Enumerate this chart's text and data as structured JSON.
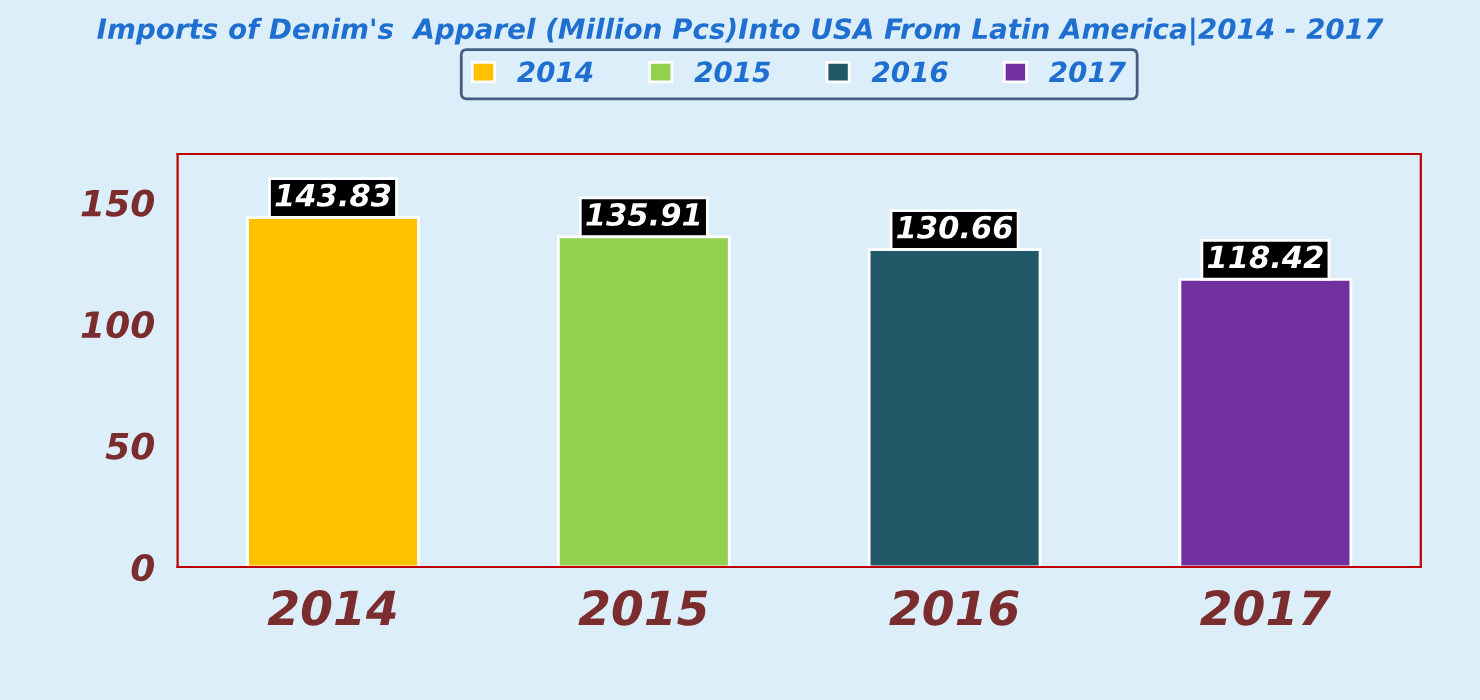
{
  "chart_data": {
    "type": "bar",
    "title": "Imports of Denim's  Apparel (Million Pcs)Into USA From Latin America|2014 - 2017",
    "categories": [
      "2014",
      "2015",
      "2016",
      "2017"
    ],
    "series": [
      {
        "name": "2014",
        "color": "#ffc000",
        "values": [
          143.83,
          null,
          null,
          null
        ]
      },
      {
        "name": "2015",
        "color": "#92d050",
        "values": [
          null,
          135.91,
          null,
          null
        ]
      },
      {
        "name": "2016",
        "color": "#215968",
        "values": [
          null,
          null,
          130.66,
          null
        ]
      },
      {
        "name": "2017",
        "color": "#7030a0",
        "values": [
          null,
          null,
          null,
          118.42
        ]
      }
    ],
    "ylim": [
      0,
      170
    ],
    "yticks": [
      0,
      50,
      100,
      150
    ],
    "data_labels": true,
    "legend": "top",
    "grid": false
  }
}
